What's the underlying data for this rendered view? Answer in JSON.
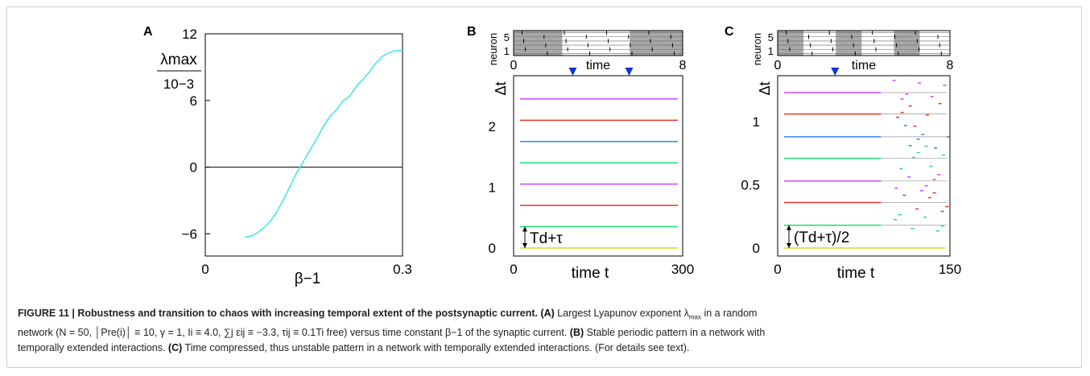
{
  "figure": {
    "panel_letters": [
      "A",
      "B",
      "C"
    ],
    "caption": {
      "title": "FIGURE 11 | Robustness and transition to chaos with increasing temporal extent of the postsynaptic current.",
      "a_tag": "(A)",
      "a_text_1": " Largest Lyapunov exponent λ",
      "a_sub": "max",
      "a_text_2": " in a random",
      "line2": "network (N = 50, │Pre(i)│ ≡ 10, γ = 1, Ii ≡ 4.0, ∑j εij ≡ −3.3, τij ≡ 0.1Ti free) versus time constant β−1 of the synaptic current.",
      "b_tag": "(B)",
      "b_text": " Stable periodic pattern in a network with",
      "line3": "temporally extended interactions.",
      "c_tag": "(C)",
      "c_text": " Time compressed, thus unstable pattern in a network with temporally extended interactions. (For details see text)."
    }
  },
  "chart_data": [
    {
      "panel": "A",
      "type": "line",
      "ylabel_main": "λmax",
      "ylabel_sub": "10−3",
      "xlabel": "β−1",
      "xticks": [
        "0",
        "0.3"
      ],
      "yticks": [
        "12",
        "6",
        "0",
        "−6"
      ],
      "xlim": [
        0,
        0.3
      ],
      "ylim": [
        -8,
        12
      ],
      "zero_line": true,
      "series": [
        {
          "color": "#3ee6e6",
          "x": [
            0.06,
            0.07,
            0.08,
            0.09,
            0.1,
            0.11,
            0.12,
            0.13,
            0.14,
            0.15,
            0.16,
            0.17,
            0.18,
            0.19,
            0.2,
            0.21,
            0.22,
            0.23,
            0.24,
            0.25,
            0.26,
            0.27,
            0.28,
            0.29,
            0.3
          ],
          "y": [
            -6.3,
            -6.2,
            -5.9,
            -5.4,
            -4.8,
            -3.9,
            -2.8,
            -1.6,
            -0.4,
            0.6,
            1.6,
            2.6,
            3.7,
            4.6,
            5.2,
            6.0,
            6.4,
            7.3,
            7.9,
            8.6,
            9.4,
            10.0,
            10.3,
            10.5,
            10.5
          ]
        }
      ]
    },
    {
      "panel": "B",
      "type": "scatter",
      "raster_ylabel": "neuron",
      "raster_yticks": [
        "1",
        "5"
      ],
      "raster_xlabel": "time",
      "raster_xticks": [
        "0",
        "8"
      ],
      "raster_xlim": [
        0,
        8
      ],
      "raster_shaded": [
        [
          0,
          2.3
        ],
        [
          5.5,
          8
        ]
      ],
      "ylabel": "Δt",
      "xlabel": "time t",
      "xticks": [
        "0",
        "300"
      ],
      "yticks": [
        "2",
        "1",
        "0"
      ],
      "xlim": [
        0,
        300
      ],
      "ylim": [
        0,
        2.7
      ],
      "perturbations_x": [
        105,
        205
      ],
      "annotation": "Td+τ",
      "rows": [
        {
          "y": 2.45,
          "color": "#cc44ff"
        },
        {
          "y": 2.1,
          "color": "#ee3322"
        },
        {
          "y": 1.75,
          "color": "#3388ee"
        },
        {
          "y": 1.4,
          "color": "#22dd77"
        },
        {
          "y": 1.05,
          "color": "#cc44ff"
        },
        {
          "y": 0.7,
          "color": "#ee3322"
        },
        {
          "y": 0.35,
          "color": "#22dd77"
        },
        {
          "y": 0.0,
          "color": "#dddd22"
        }
      ]
    },
    {
      "panel": "C",
      "type": "scatter",
      "raster_ylabel": "neuron",
      "raster_yticks": [
        "1",
        "5"
      ],
      "raster_xlabel": "time",
      "raster_xticks": [
        "0",
        "8"
      ],
      "raster_xlim": [
        0,
        8
      ],
      "raster_shaded": [
        [
          0,
          1.2
        ],
        [
          2.7,
          3.9
        ],
        [
          5.4,
          6.6
        ]
      ],
      "ylabel": "Δt",
      "xlabel": "time t",
      "xticks": [
        "0",
        "150"
      ],
      "yticks": [
        "1",
        "0.5",
        "0"
      ],
      "xlim": [
        0,
        150
      ],
      "ylim": [
        0,
        1.3
      ],
      "perturbations_x": [
        50
      ],
      "annotation": "(Td+τ)/2",
      "rows": [
        {
          "y": 1.23,
          "color": "#cc44ff"
        },
        {
          "y": 1.06,
          "color": "#ee3322"
        },
        {
          "y": 0.88,
          "color": "#3388ee"
        },
        {
          "y": 0.71,
          "color": "#22dd77"
        },
        {
          "y": 0.53,
          "color": "#cc44ff"
        },
        {
          "y": 0.36,
          "color": "#ee3322"
        },
        {
          "y": 0.18,
          "color": "#22dd77"
        },
        {
          "y": 0.0,
          "color": "#dddd22"
        }
      ]
    }
  ]
}
